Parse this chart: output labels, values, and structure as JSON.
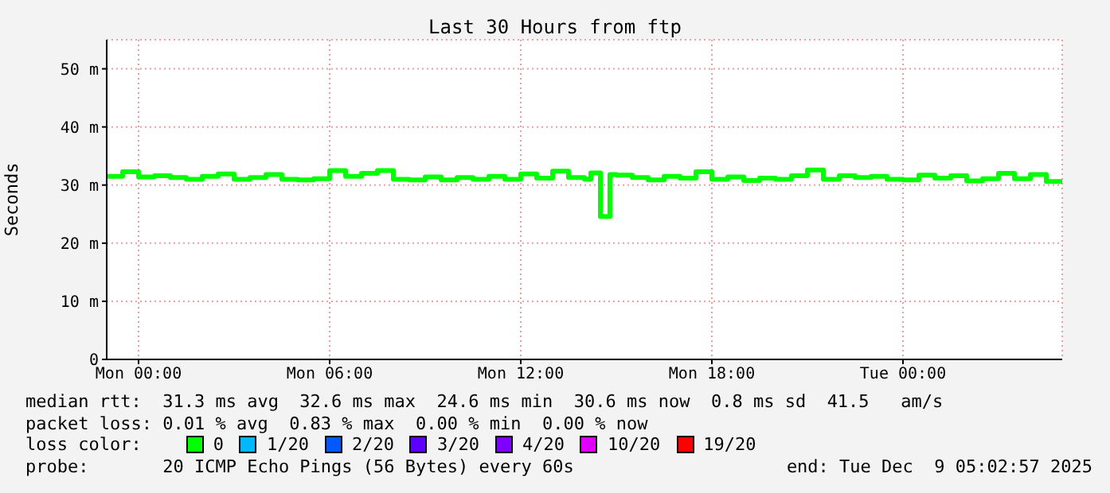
{
  "chart_data": {
    "type": "step",
    "title": "Last 30 Hours from ftp",
    "ylabel": "Seconds",
    "x": [
      "2025-12-07T23:00",
      "2025-12-07T23:30",
      "2025-12-08T00:00",
      "2025-12-08T00:30",
      "2025-12-08T01:00",
      "2025-12-08T01:30",
      "2025-12-08T02:00",
      "2025-12-08T02:30",
      "2025-12-08T03:00",
      "2025-12-08T03:30",
      "2025-12-08T04:00",
      "2025-12-08T04:30",
      "2025-12-08T05:00",
      "2025-12-08T05:30",
      "2025-12-08T06:00",
      "2025-12-08T06:30",
      "2025-12-08T07:00",
      "2025-12-08T07:30",
      "2025-12-08T08:00",
      "2025-12-08T08:30",
      "2025-12-08T09:00",
      "2025-12-08T09:30",
      "2025-12-08T10:00",
      "2025-12-08T10:30",
      "2025-12-08T11:00",
      "2025-12-08T11:30",
      "2025-12-08T12:00",
      "2025-12-08T12:30",
      "2025-12-08T13:00",
      "2025-12-08T13:30",
      "2025-12-08T14:00",
      "2025-12-08T14:12",
      "2025-12-08T14:30",
      "2025-12-08T14:48",
      "2025-12-08T15:00",
      "2025-12-08T15:30",
      "2025-12-08T16:00",
      "2025-12-08T16:30",
      "2025-12-08T17:00",
      "2025-12-08T17:30",
      "2025-12-08T18:00",
      "2025-12-08T18:30",
      "2025-12-08T19:00",
      "2025-12-08T19:30",
      "2025-12-08T20:00",
      "2025-12-08T20:30",
      "2025-12-08T21:00",
      "2025-12-08T21:30",
      "2025-12-08T22:00",
      "2025-12-08T22:30",
      "2025-12-08T23:00",
      "2025-12-08T23:30",
      "2025-12-09T00:00",
      "2025-12-09T00:30",
      "2025-12-09T01:00",
      "2025-12-09T01:30",
      "2025-12-09T02:00",
      "2025-12-09T02:30",
      "2025-12-09T03:00",
      "2025-12-09T03:30",
      "2025-12-09T04:00",
      "2025-12-09T04:30",
      "2025-12-09T05:00"
    ],
    "series": [
      {
        "name": "0",
        "color": "#00ff00",
        "values": [
          31.5,
          32.3,
          31.4,
          31.6,
          31.3,
          31.0,
          31.5,
          31.9,
          31.0,
          31.3,
          31.8,
          31.0,
          30.9,
          31.1,
          32.5,
          31.5,
          32.0,
          32.5,
          31.0,
          30.9,
          31.4,
          30.9,
          31.3,
          31.0,
          31.5,
          31.0,
          31.9,
          31.2,
          32.4,
          31.3,
          31.0,
          32.1,
          24.6,
          31.8,
          31.7,
          31.3,
          30.9,
          31.5,
          31.2,
          32.3,
          31.0,
          31.4,
          30.8,
          31.2,
          31.0,
          31.6,
          32.6,
          31.0,
          31.6,
          31.3,
          31.5,
          31.0,
          30.9,
          31.7,
          31.2,
          31.6,
          30.7,
          31.1,
          32.0,
          31.1,
          31.8,
          30.6,
          30.6
        ]
      },
      {
        "name": "1/20",
        "color": "#00b8ff",
        "values": [
          null,
          null,
          null,
          null,
          null,
          null,
          null,
          null,
          null,
          null,
          null,
          null,
          null,
          null,
          null,
          null,
          null,
          null,
          null,
          null,
          null,
          null,
          null,
          null,
          null,
          null,
          null,
          null,
          null,
          null,
          null,
          null,
          null,
          null,
          null,
          null,
          null,
          null,
          null,
          null,
          null,
          null,
          null,
          null,
          null,
          null,
          null,
          null,
          null,
          null,
          null,
          null,
          null,
          null,
          null,
          null,
          null,
          null,
          null,
          null,
          null,
          null,
          null
        ]
      },
      {
        "name": "2/20",
        "color": "#0059ff",
        "values": [
          null,
          null,
          null,
          null,
          null,
          null,
          null,
          null,
          null,
          null,
          null,
          null,
          null,
          null,
          null,
          null,
          null,
          null,
          null,
          null,
          null,
          null,
          null,
          null,
          null,
          null,
          null,
          null,
          null,
          null,
          null,
          null,
          null,
          null,
          null,
          null,
          null,
          null,
          null,
          null,
          null,
          null,
          null,
          null,
          null,
          null,
          null,
          null,
          null,
          null,
          null,
          null,
          null,
          null,
          null,
          null,
          null,
          null,
          null,
          null,
          null,
          null,
          null
        ]
      },
      {
        "name": "3/20",
        "color": "#5e00ff",
        "values": [
          null,
          null,
          null,
          null,
          null,
          null,
          null,
          null,
          null,
          null,
          null,
          null,
          null,
          null,
          null,
          null,
          null,
          null,
          null,
          null,
          null,
          null,
          null,
          null,
          null,
          null,
          null,
          null,
          null,
          null,
          null,
          null,
          null,
          null,
          null,
          null,
          null,
          null,
          null,
          null,
          null,
          null,
          null,
          null,
          null,
          null,
          null,
          null,
          null,
          null,
          null,
          null,
          null,
          null,
          null,
          null,
          null,
          null,
          null,
          null,
          null,
          null,
          null
        ]
      },
      {
        "name": "4/20",
        "color": "#7e00ff",
        "values": [
          null,
          null,
          null,
          null,
          null,
          null,
          null,
          null,
          null,
          null,
          null,
          null,
          null,
          null,
          null,
          null,
          null,
          null,
          null,
          null,
          null,
          null,
          null,
          null,
          null,
          null,
          null,
          null,
          null,
          null,
          null,
          null,
          null,
          null,
          null,
          null,
          null,
          null,
          null,
          null,
          null,
          null,
          null,
          null,
          null,
          null,
          null,
          null,
          null,
          null,
          null,
          null,
          null,
          null,
          null,
          null,
          null,
          null,
          null,
          null,
          null,
          null,
          null
        ]
      },
      {
        "name": "10/20",
        "color": "#dd00ff",
        "values": [
          null,
          null,
          null,
          null,
          null,
          null,
          null,
          null,
          null,
          null,
          null,
          null,
          null,
          null,
          null,
          null,
          null,
          null,
          null,
          null,
          null,
          null,
          null,
          null,
          null,
          null,
          null,
          null,
          null,
          null,
          null,
          null,
          null,
          null,
          null,
          null,
          null,
          null,
          null,
          null,
          null,
          null,
          null,
          null,
          null,
          null,
          null,
          null,
          null,
          null,
          null,
          null,
          null,
          null,
          null,
          null,
          null,
          null,
          null,
          null,
          null,
          null,
          null
        ]
      },
      {
        "name": "19/20",
        "color": "#ff0000",
        "values": [
          null,
          null,
          null,
          null,
          null,
          null,
          null,
          null,
          null,
          null,
          null,
          null,
          null,
          null,
          null,
          null,
          null,
          null,
          null,
          null,
          null,
          null,
          null,
          null,
          null,
          null,
          null,
          null,
          null,
          null,
          null,
          null,
          null,
          null,
          null,
          null,
          null,
          null,
          null,
          null,
          null,
          null,
          null,
          null,
          null,
          null,
          null,
          null,
          null,
          null,
          null,
          null,
          null,
          null,
          null,
          null,
          null,
          null,
          null,
          null,
          null,
          null,
          null
        ]
      }
    ],
    "legend_title": "loss color:",
    "legend": "bottom",
    "xlim": [
      "2025-12-07T23:00",
      "2025-12-09T05:00"
    ],
    "xticks": [
      {
        "value": "2025-12-08T00:00",
        "label": "Mon 00:00"
      },
      {
        "value": "2025-12-08T06:00",
        "label": "Mon 06:00"
      },
      {
        "value": "2025-12-08T12:00",
        "label": "Mon 12:00"
      },
      {
        "value": "2025-12-08T18:00",
        "label": "Mon 18:00"
      },
      {
        "value": "2025-12-09T00:00",
        "label": "Tue 00:00"
      }
    ],
    "ylim": [
      0,
      55
    ],
    "yticks": [
      0,
      {
        "value": 10,
        "label": "10 m"
      },
      {
        "value": 20,
        "label": "20 m"
      },
      {
        "value": 30,
        "label": "30 m"
      },
      {
        "value": 40,
        "label": "40 m"
      },
      {
        "value": 50,
        "label": "50 m"
      }
    ],
    "grid": true,
    "marker": "none",
    "line_style": "solid",
    "annotations": [
      "median rtt:  31.3 ms avg  32.6 ms max  24.6 ms min  30.6 ms now  0.8 ms sd  41.5   am/s",
      "packet loss: 0.01 % avg  0.83 % max  0.00 % min  0.00 % now",
      "probe:       20 ICMP Echo Pings (56 Bytes) every 60s",
      "end: Tue Dec  9 05:02:57 2025"
    ]
  }
}
